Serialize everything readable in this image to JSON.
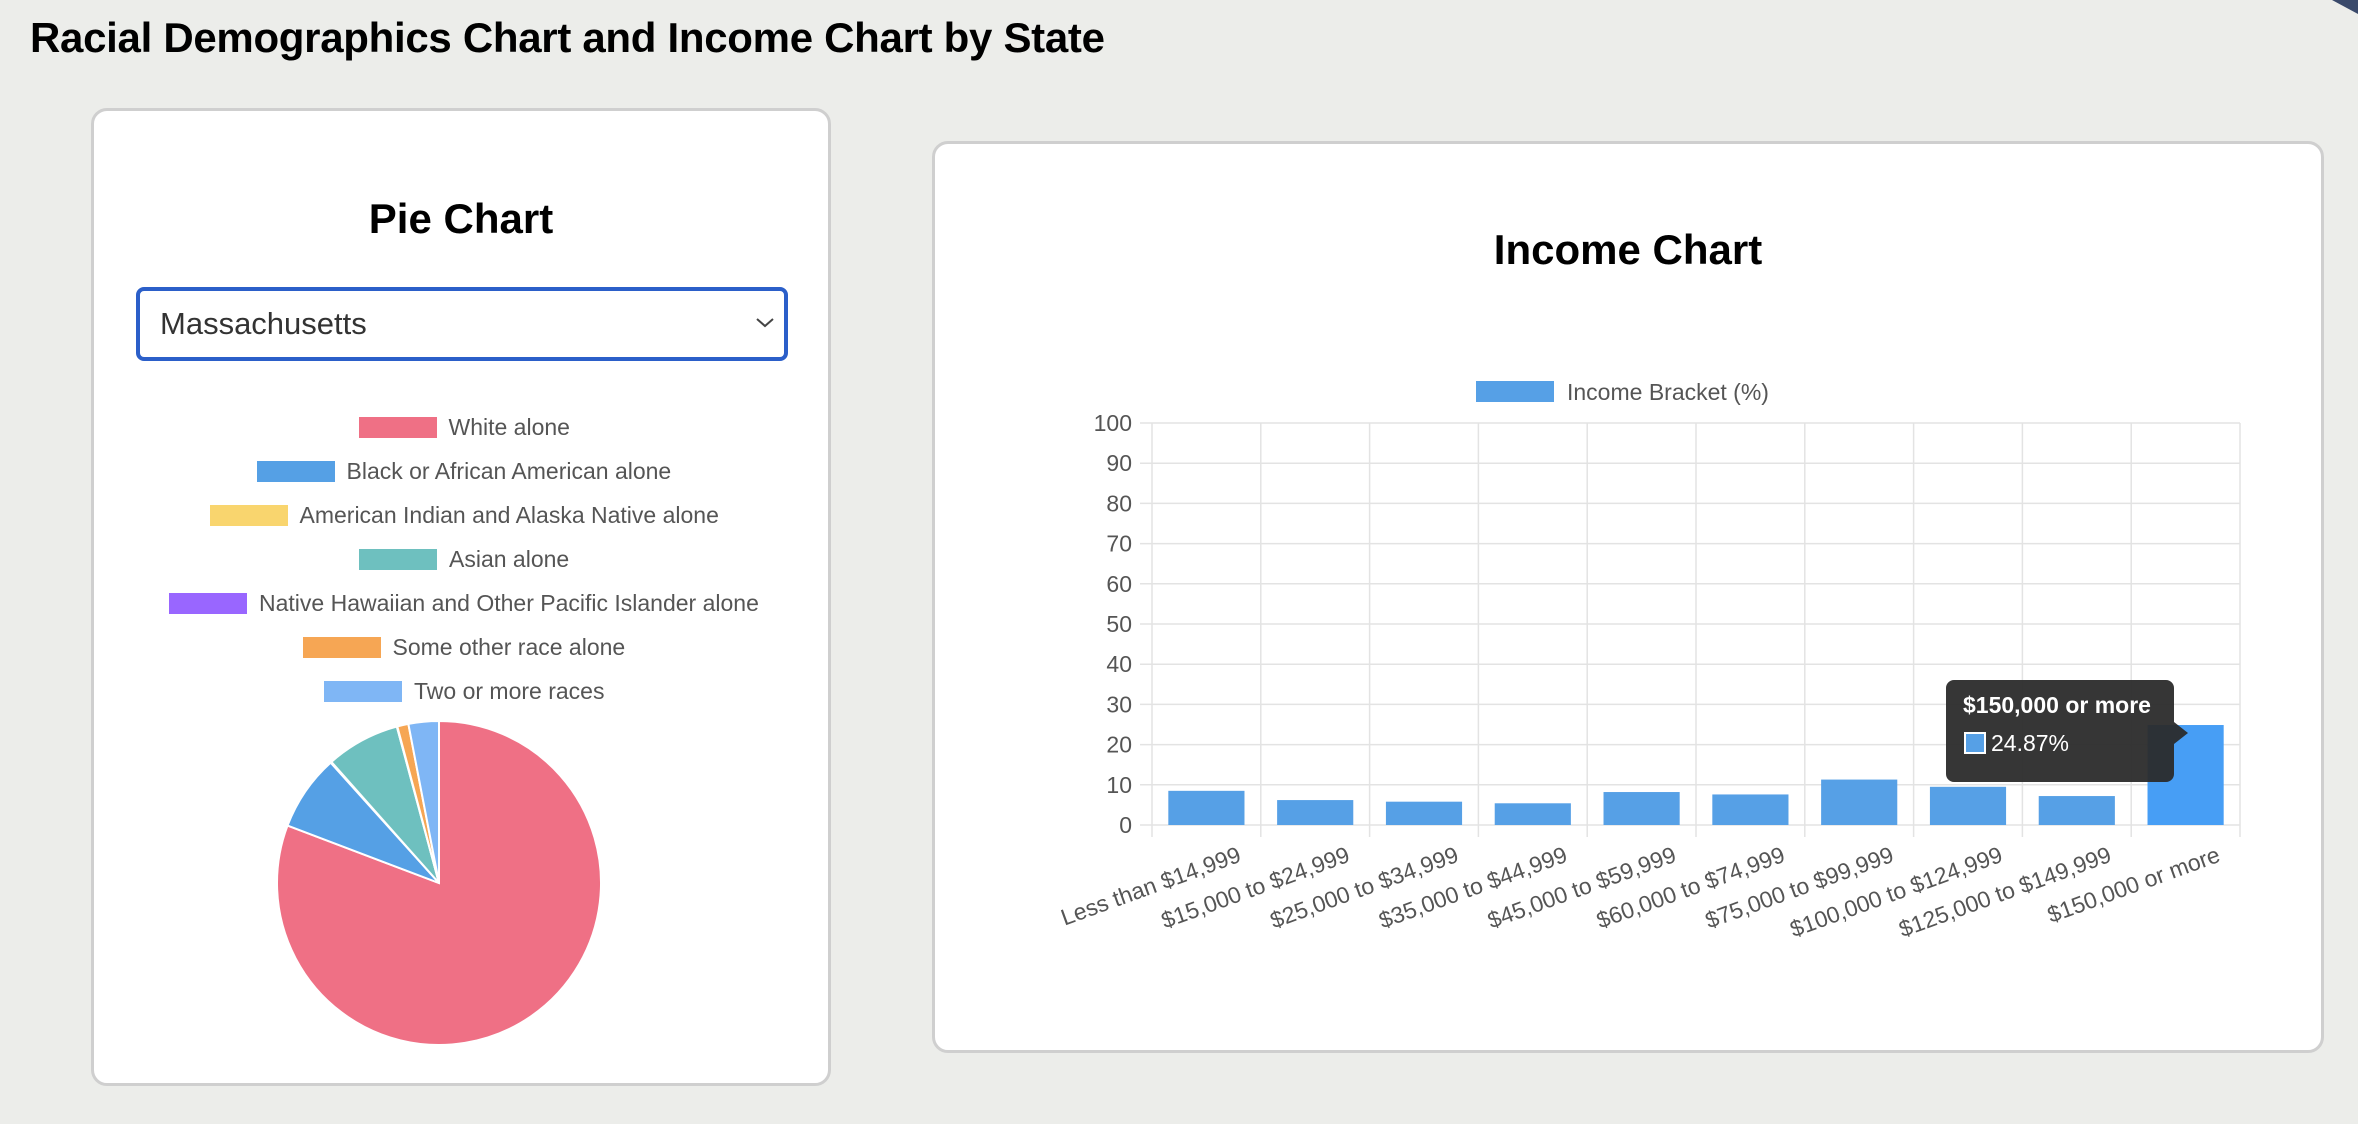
{
  "page_title": "Racial Demographics Chart and Income Chart by State",
  "pie_card": {
    "title": "Pie Chart",
    "state_select": {
      "value": "Massachusetts",
      "icon": "chevron-down-icon"
    }
  },
  "income_card": {
    "title": "Income Chart"
  },
  "colors": {
    "accent_border": "#2b5fc9",
    "bar": "#56a0e6",
    "bar_active": "#479ef5",
    "tooltip_bg": "#2b2b2b"
  },
  "chart_data": [
    {
      "type": "pie",
      "legend_position": "top",
      "categories": [
        "White alone",
        "Black or African American alone",
        "American Indian and Alaska Native alone",
        "Asian alone",
        "Native Hawaiian and Other Pacific Islander alone",
        "Some other race alone",
        "Two or more races"
      ],
      "legend_display": [
        "White alone",
        "Black or African American alone",
        "American Indian and Alaska Native alone",
        "Asian alone",
        "Native Hawaiian and Other Pacific Islander alone",
        "Some other race alone",
        "Two or more races"
      ],
      "values": [
        80.0,
        7.5,
        0.1,
        7.3,
        0.05,
        1.1,
        3.0
      ],
      "colors": [
        "#ef7085",
        "#55a0e5",
        "#f9d56e",
        "#6ec0bf",
        "#9966ff",
        "#f6a654",
        "#7fb6f5"
      ]
    },
    {
      "type": "bar",
      "legend": "Income Bracket (%)",
      "legend_position": "top",
      "categories": [
        "Less than $14,999",
        "$15,000 to $24,999",
        "$25,000 to $34,999",
        "$35,000 to $44,999",
        "$45,000 to $59,999",
        "$60,000 to $74,999",
        "$75,000 to $99,999",
        "$100,000 to $124,999",
        "$125,000 to $149,999",
        "$150,000 or more"
      ],
      "series": [
        {
          "name": "Income Bracket (%)",
          "values": [
            8.5,
            6.2,
            5.8,
            5.4,
            8.2,
            7.6,
            11.3,
            9.5,
            7.2,
            24.87
          ]
        }
      ],
      "ylim": [
        0,
        100
      ],
      "yticks": [
        0,
        10,
        20,
        30,
        40,
        50,
        60,
        70,
        80,
        90,
        100
      ],
      "grid": true,
      "tooltip": {
        "title": "$150,000 or more",
        "value": "24.87%",
        "category_index": 9
      }
    }
  ]
}
